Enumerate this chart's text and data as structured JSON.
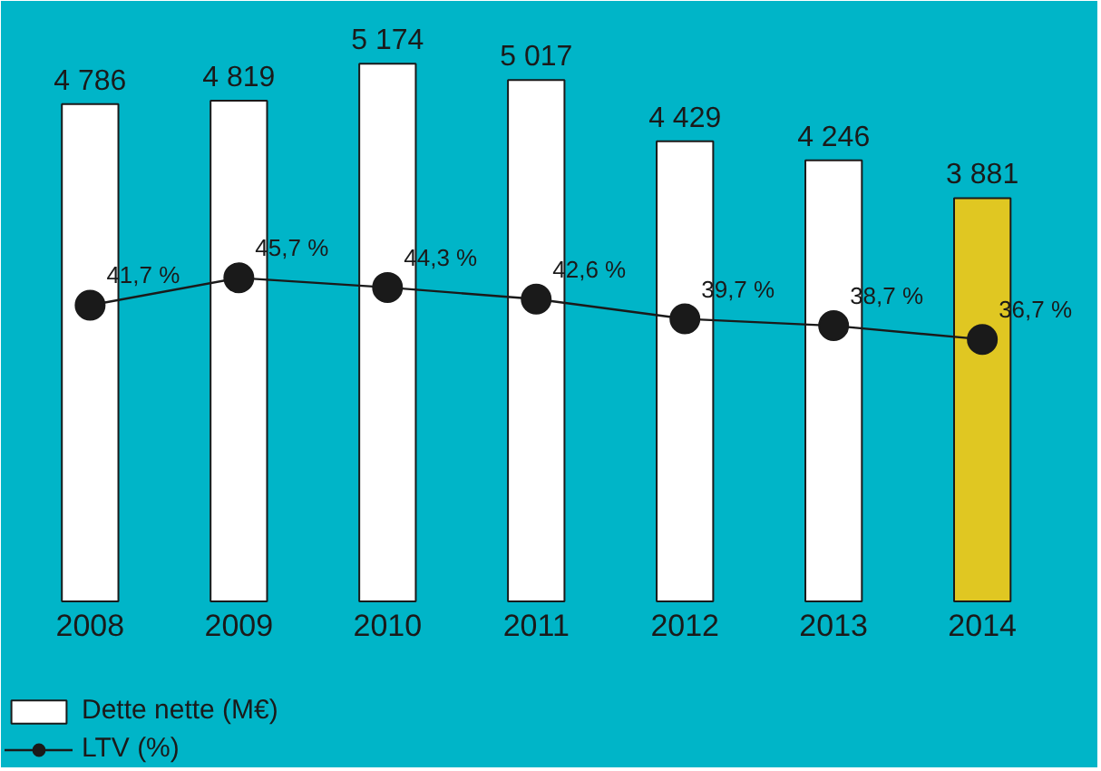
{
  "chart_data": {
    "type": "bar",
    "categories": [
      "2008",
      "2009",
      "2010",
      "2011",
      "2012",
      "2013",
      "2014"
    ],
    "tick_labels": "x",
    "legend": "bottom left",
    "series": [
      {
        "name": "Dette nette (M€)",
        "type": "bar",
        "colors": [
          "#ffffff",
          "#ffffff",
          "#ffffff",
          "#ffffff",
          "#ffffff",
          "#ffffff",
          "#e0c722"
        ],
        "values": [
          4786,
          4819,
          5174,
          5017,
          4429,
          4246,
          3881
        ],
        "value_labels": [
          "4 786",
          "4 819",
          "5 174",
          "5 017",
          "4 429",
          "4 246",
          "3 881"
        ]
      },
      {
        "name": "LTV (%)",
        "type": "line",
        "axis": "y2",
        "color": "#1a1a1a",
        "marker": "circle",
        "values": [
          41.7,
          45.7,
          44.3,
          42.6,
          39.7,
          38.7,
          36.7
        ],
        "value_labels": [
          "41,7 %",
          "45,7 %",
          "44,3 %",
          "42,6 %",
          "39,7 %",
          "38,7 %",
          "36,7 %"
        ]
      }
    ]
  }
}
